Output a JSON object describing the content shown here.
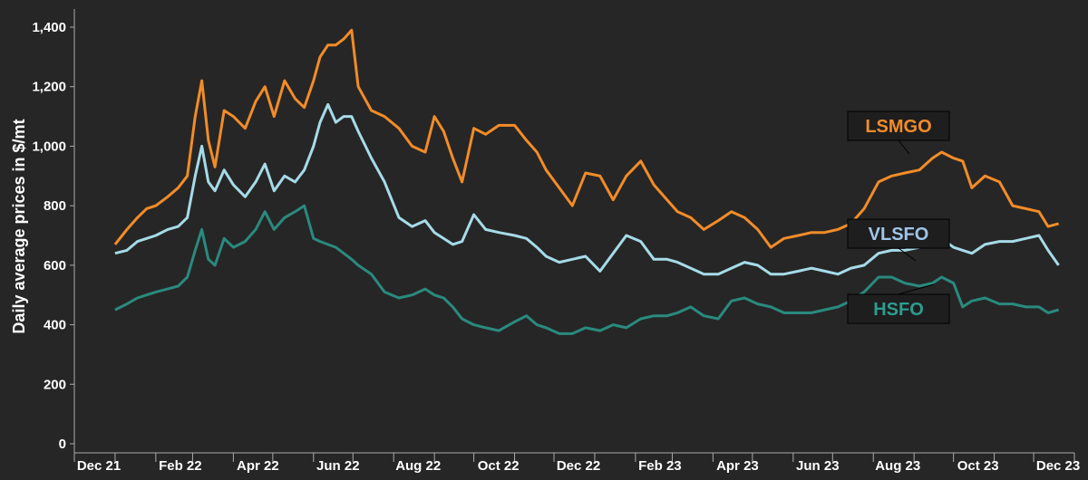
{
  "chart_data": {
    "type": "line",
    "title": "",
    "xlabel": "",
    "ylabel": "Daily average prices in $/mt",
    "ylim": [
      0,
      1400
    ],
    "yticks": [
      "0",
      "200",
      "400",
      "600",
      "800",
      "1,000",
      "1,200",
      "1,400"
    ],
    "xlim": [
      "2021-12-01",
      "2024-01-01"
    ],
    "xticks": [
      {
        "date": "2021-12-01",
        "label": "Dec 21"
      },
      {
        "date": "2022-02-01",
        "label": "Feb 22"
      },
      {
        "date": "2022-04-01",
        "label": "Apr 22"
      },
      {
        "date": "2022-06-01",
        "label": "Jun 22"
      },
      {
        "date": "2022-08-01",
        "label": "Aug 22"
      },
      {
        "date": "2022-10-01",
        "label": "Oct 22"
      },
      {
        "date": "2022-12-01",
        "label": "Dec 22"
      },
      {
        "date": "2023-02-01",
        "label": "Feb 23"
      },
      {
        "date": "2023-04-01",
        "label": "Apr 23"
      },
      {
        "date": "2023-06-01",
        "label": "Jun 23"
      },
      {
        "date": "2023-08-01",
        "label": "Aug 23"
      },
      {
        "date": "2023-10-01",
        "label": "Oct 23"
      },
      {
        "date": "2023-12-01",
        "label": "Dec 23"
      }
    ],
    "grid": false,
    "legend": "labels at right, inside plot",
    "colors": {
      "background": "#262626",
      "axis": "#aaaaaa",
      "text": "#ffffff"
    },
    "series": [
      {
        "name": "LSMGO",
        "color": "#f28c28",
        "label_color": "#f28c28",
        "points": [
          [
            "2022-01-01",
            670
          ],
          [
            "2022-01-10",
            720
          ],
          [
            "2022-01-18",
            760
          ],
          [
            "2022-01-25",
            790
          ],
          [
            "2022-02-01",
            800
          ],
          [
            "2022-02-10",
            830
          ],
          [
            "2022-02-18",
            860
          ],
          [
            "2022-02-25",
            900
          ],
          [
            "2022-03-03",
            1100
          ],
          [
            "2022-03-08",
            1220
          ],
          [
            "2022-03-13",
            1020
          ],
          [
            "2022-03-18",
            930
          ],
          [
            "2022-03-25",
            1120
          ],
          [
            "2022-04-01",
            1100
          ],
          [
            "2022-04-10",
            1060
          ],
          [
            "2022-04-18",
            1150
          ],
          [
            "2022-04-25",
            1200
          ],
          [
            "2022-05-02",
            1100
          ],
          [
            "2022-05-10",
            1220
          ],
          [
            "2022-05-18",
            1160
          ],
          [
            "2022-05-25",
            1130
          ],
          [
            "2022-06-01",
            1220
          ],
          [
            "2022-06-06",
            1300
          ],
          [
            "2022-06-12",
            1340
          ],
          [
            "2022-06-18",
            1340
          ],
          [
            "2022-06-24",
            1360
          ],
          [
            "2022-06-30",
            1390
          ],
          [
            "2022-07-05",
            1200
          ],
          [
            "2022-07-15",
            1120
          ],
          [
            "2022-07-25",
            1100
          ],
          [
            "2022-08-05",
            1060
          ],
          [
            "2022-08-15",
            1000
          ],
          [
            "2022-08-25",
            980
          ],
          [
            "2022-09-01",
            1100
          ],
          [
            "2022-09-08",
            1050
          ],
          [
            "2022-09-15",
            960
          ],
          [
            "2022-09-22",
            880
          ],
          [
            "2022-10-01",
            1060
          ],
          [
            "2022-10-10",
            1040
          ],
          [
            "2022-10-20",
            1070
          ],
          [
            "2022-11-01",
            1070
          ],
          [
            "2022-11-10",
            1020
          ],
          [
            "2022-11-18",
            980
          ],
          [
            "2022-11-25",
            920
          ],
          [
            "2022-12-05",
            860
          ],
          [
            "2022-12-15",
            800
          ],
          [
            "2022-12-25",
            910
          ],
          [
            "2023-01-05",
            900
          ],
          [
            "2023-01-15",
            820
          ],
          [
            "2023-01-25",
            900
          ],
          [
            "2023-02-05",
            950
          ],
          [
            "2023-02-15",
            870
          ],
          [
            "2023-02-25",
            820
          ],
          [
            "2023-03-05",
            780
          ],
          [
            "2023-03-15",
            760
          ],
          [
            "2023-03-25",
            720
          ],
          [
            "2023-04-05",
            750
          ],
          [
            "2023-04-15",
            780
          ],
          [
            "2023-04-25",
            760
          ],
          [
            "2023-05-05",
            720
          ],
          [
            "2023-05-15",
            660
          ],
          [
            "2023-05-25",
            690
          ],
          [
            "2023-06-05",
            700
          ],
          [
            "2023-06-15",
            710
          ],
          [
            "2023-06-25",
            710
          ],
          [
            "2023-07-05",
            720
          ],
          [
            "2023-07-15",
            740
          ],
          [
            "2023-07-25",
            790
          ],
          [
            "2023-08-05",
            880
          ],
          [
            "2023-08-15",
            900
          ],
          [
            "2023-08-25",
            910
          ],
          [
            "2023-09-05",
            920
          ],
          [
            "2023-09-15",
            960
          ],
          [
            "2023-09-22",
            980
          ],
          [
            "2023-10-01",
            960
          ],
          [
            "2023-10-08",
            950
          ],
          [
            "2023-10-15",
            860
          ],
          [
            "2023-10-25",
            900
          ],
          [
            "2023-11-05",
            880
          ],
          [
            "2023-11-15",
            800
          ],
          [
            "2023-11-25",
            790
          ],
          [
            "2023-12-05",
            780
          ],
          [
            "2023-12-12",
            730
          ],
          [
            "2023-12-20",
            740
          ]
        ]
      },
      {
        "name": "VLSFO",
        "color": "#a6dbe8",
        "label_color": "#9fc5e8",
        "points": [
          [
            "2022-01-01",
            640
          ],
          [
            "2022-01-10",
            650
          ],
          [
            "2022-01-18",
            680
          ],
          [
            "2022-01-25",
            690
          ],
          [
            "2022-02-01",
            700
          ],
          [
            "2022-02-10",
            720
          ],
          [
            "2022-02-18",
            730
          ],
          [
            "2022-02-25",
            760
          ],
          [
            "2022-03-03",
            900
          ],
          [
            "2022-03-08",
            1000
          ],
          [
            "2022-03-13",
            880
          ],
          [
            "2022-03-18",
            850
          ],
          [
            "2022-03-25",
            920
          ],
          [
            "2022-04-01",
            870
          ],
          [
            "2022-04-10",
            830
          ],
          [
            "2022-04-18",
            880
          ],
          [
            "2022-04-25",
            940
          ],
          [
            "2022-05-02",
            850
          ],
          [
            "2022-05-10",
            900
          ],
          [
            "2022-05-18",
            880
          ],
          [
            "2022-05-25",
            920
          ],
          [
            "2022-06-01",
            1000
          ],
          [
            "2022-06-06",
            1080
          ],
          [
            "2022-06-12",
            1140
          ],
          [
            "2022-06-18",
            1080
          ],
          [
            "2022-06-24",
            1100
          ],
          [
            "2022-06-30",
            1100
          ],
          [
            "2022-07-05",
            1050
          ],
          [
            "2022-07-15",
            960
          ],
          [
            "2022-07-25",
            880
          ],
          [
            "2022-08-05",
            760
          ],
          [
            "2022-08-15",
            730
          ],
          [
            "2022-08-25",
            750
          ],
          [
            "2022-09-01",
            710
          ],
          [
            "2022-09-08",
            690
          ],
          [
            "2022-09-15",
            670
          ],
          [
            "2022-09-22",
            680
          ],
          [
            "2022-10-01",
            770
          ],
          [
            "2022-10-10",
            720
          ],
          [
            "2022-10-20",
            710
          ],
          [
            "2022-11-01",
            700
          ],
          [
            "2022-11-10",
            690
          ],
          [
            "2022-11-18",
            660
          ],
          [
            "2022-11-25",
            630
          ],
          [
            "2022-12-05",
            610
          ],
          [
            "2022-12-15",
            620
          ],
          [
            "2022-12-25",
            630
          ],
          [
            "2023-01-05",
            580
          ],
          [
            "2023-01-15",
            640
          ],
          [
            "2023-01-25",
            700
          ],
          [
            "2023-02-05",
            680
          ],
          [
            "2023-02-15",
            620
          ],
          [
            "2023-02-25",
            620
          ],
          [
            "2023-03-05",
            610
          ],
          [
            "2023-03-15",
            590
          ],
          [
            "2023-03-25",
            570
          ],
          [
            "2023-04-05",
            570
          ],
          [
            "2023-04-15",
            590
          ],
          [
            "2023-04-25",
            610
          ],
          [
            "2023-05-05",
            600
          ],
          [
            "2023-05-15",
            570
          ],
          [
            "2023-05-25",
            570
          ],
          [
            "2023-06-05",
            580
          ],
          [
            "2023-06-15",
            590
          ],
          [
            "2023-06-25",
            580
          ],
          [
            "2023-07-05",
            570
          ],
          [
            "2023-07-15",
            590
          ],
          [
            "2023-07-25",
            600
          ],
          [
            "2023-08-05",
            640
          ],
          [
            "2023-08-15",
            650
          ],
          [
            "2023-08-25",
            650
          ],
          [
            "2023-09-05",
            660
          ],
          [
            "2023-09-15",
            670
          ],
          [
            "2023-09-22",
            690
          ],
          [
            "2023-10-01",
            660
          ],
          [
            "2023-10-08",
            650
          ],
          [
            "2023-10-15",
            640
          ],
          [
            "2023-10-25",
            670
          ],
          [
            "2023-11-05",
            680
          ],
          [
            "2023-11-15",
            680
          ],
          [
            "2023-11-25",
            690
          ],
          [
            "2023-12-05",
            700
          ],
          [
            "2023-12-12",
            650
          ],
          [
            "2023-12-20",
            600
          ]
        ]
      },
      {
        "name": "HSFO",
        "color": "#2a8a7e",
        "label_color": "#2e9c8f",
        "points": [
          [
            "2022-01-01",
            450
          ],
          [
            "2022-01-10",
            470
          ],
          [
            "2022-01-18",
            490
          ],
          [
            "2022-01-25",
            500
          ],
          [
            "2022-02-01",
            510
          ],
          [
            "2022-02-10",
            520
          ],
          [
            "2022-02-18",
            530
          ],
          [
            "2022-02-25",
            560
          ],
          [
            "2022-03-03",
            650
          ],
          [
            "2022-03-08",
            720
          ],
          [
            "2022-03-13",
            620
          ],
          [
            "2022-03-18",
            600
          ],
          [
            "2022-03-25",
            690
          ],
          [
            "2022-04-01",
            660
          ],
          [
            "2022-04-10",
            680
          ],
          [
            "2022-04-18",
            720
          ],
          [
            "2022-04-25",
            780
          ],
          [
            "2022-05-02",
            720
          ],
          [
            "2022-05-10",
            760
          ],
          [
            "2022-05-18",
            780
          ],
          [
            "2022-05-25",
            800
          ],
          [
            "2022-06-01",
            690
          ],
          [
            "2022-06-06",
            680
          ],
          [
            "2022-06-12",
            670
          ],
          [
            "2022-06-18",
            660
          ],
          [
            "2022-06-24",
            640
          ],
          [
            "2022-06-30",
            620
          ],
          [
            "2022-07-05",
            600
          ],
          [
            "2022-07-15",
            570
          ],
          [
            "2022-07-25",
            510
          ],
          [
            "2022-08-05",
            490
          ],
          [
            "2022-08-15",
            500
          ],
          [
            "2022-08-25",
            520
          ],
          [
            "2022-09-01",
            500
          ],
          [
            "2022-09-08",
            490
          ],
          [
            "2022-09-15",
            460
          ],
          [
            "2022-09-22",
            420
          ],
          [
            "2022-10-01",
            400
          ],
          [
            "2022-10-10",
            390
          ],
          [
            "2022-10-20",
            380
          ],
          [
            "2022-11-01",
            410
          ],
          [
            "2022-11-10",
            430
          ],
          [
            "2022-11-18",
            400
          ],
          [
            "2022-11-25",
            390
          ],
          [
            "2022-12-05",
            370
          ],
          [
            "2022-12-15",
            370
          ],
          [
            "2022-12-25",
            390
          ],
          [
            "2023-01-05",
            380
          ],
          [
            "2023-01-15",
            400
          ],
          [
            "2023-01-25",
            390
          ],
          [
            "2023-02-05",
            420
          ],
          [
            "2023-02-15",
            430
          ],
          [
            "2023-02-25",
            430
          ],
          [
            "2023-03-05",
            440
          ],
          [
            "2023-03-15",
            460
          ],
          [
            "2023-03-25",
            430
          ],
          [
            "2023-04-05",
            420
          ],
          [
            "2023-04-15",
            480
          ],
          [
            "2023-04-25",
            490
          ],
          [
            "2023-05-05",
            470
          ],
          [
            "2023-05-15",
            460
          ],
          [
            "2023-05-25",
            440
          ],
          [
            "2023-06-05",
            440
          ],
          [
            "2023-06-15",
            440
          ],
          [
            "2023-06-25",
            450
          ],
          [
            "2023-07-05",
            460
          ],
          [
            "2023-07-15",
            480
          ],
          [
            "2023-07-25",
            510
          ],
          [
            "2023-08-05",
            560
          ],
          [
            "2023-08-15",
            560
          ],
          [
            "2023-08-25",
            540
          ],
          [
            "2023-09-05",
            530
          ],
          [
            "2023-09-15",
            540
          ],
          [
            "2023-09-22",
            560
          ],
          [
            "2023-10-01",
            540
          ],
          [
            "2023-10-08",
            460
          ],
          [
            "2023-10-15",
            480
          ],
          [
            "2023-10-25",
            490
          ],
          [
            "2023-11-05",
            470
          ],
          [
            "2023-11-15",
            470
          ],
          [
            "2023-11-25",
            460
          ],
          [
            "2023-12-05",
            460
          ],
          [
            "2023-12-12",
            440
          ],
          [
            "2023-12-20",
            450
          ]
        ]
      }
    ]
  }
}
